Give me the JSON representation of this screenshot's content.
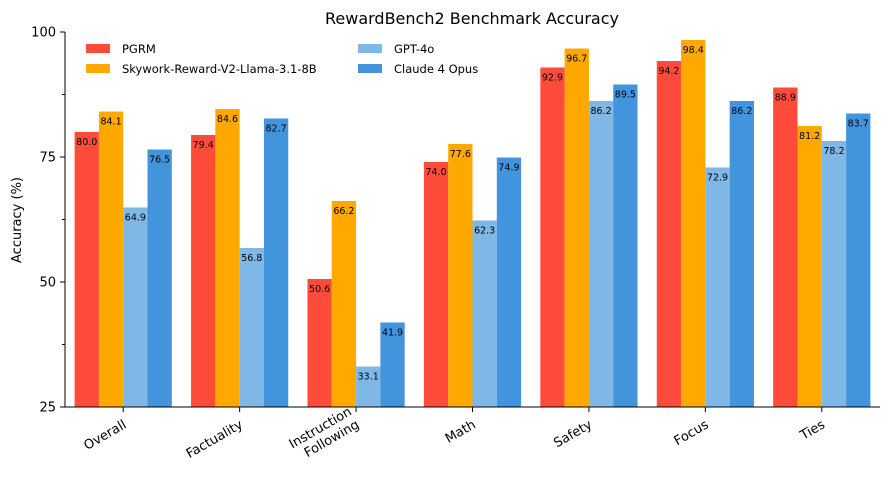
{
  "chart_data": {
    "type": "bar",
    "title": "RewardBench2 Benchmark Accuracy",
    "xlabel": "",
    "ylabel": "Accuracy (%)",
    "ylim": [
      25,
      100
    ],
    "yticks": [
      25,
      50,
      75,
      100
    ],
    "grid": false,
    "legend_position": "top-left",
    "categories": [
      "Overall",
      "Factuality",
      "Instruction\nFollowing",
      "Math",
      "Safety",
      "Focus",
      "Ties"
    ],
    "series": [
      {
        "name": "PGRM",
        "color": "#ff4b3a",
        "values": [
          80.0,
          79.4,
          50.6,
          74.0,
          92.9,
          94.2,
          88.9
        ]
      },
      {
        "name": "Skywork-Reward-V2-Llama-3.1-8B",
        "color": "#ffa800",
        "values": [
          84.1,
          84.6,
          66.2,
          77.6,
          96.7,
          98.4,
          81.2
        ]
      },
      {
        "name": "GPT-4o",
        "color": "#7fb7e6",
        "values": [
          64.9,
          56.8,
          33.1,
          62.3,
          86.2,
          72.9,
          78.2
        ]
      },
      {
        "name": "Claude 4 Opus",
        "color": "#4294dd",
        "values": [
          76.5,
          82.7,
          41.9,
          74.9,
          89.5,
          86.2,
          83.7
        ]
      }
    ]
  }
}
